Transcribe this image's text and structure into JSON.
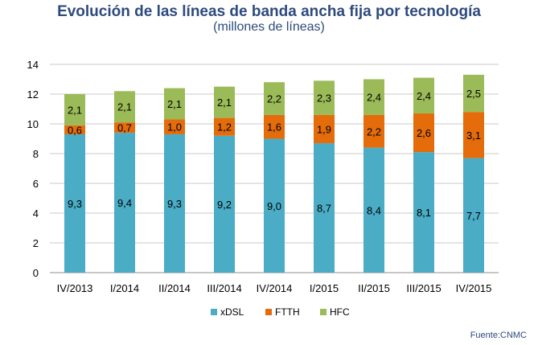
{
  "title": "Evolución de las líneas de banda ancha fija por tecnología",
  "subtitle": "(millones de líneas)",
  "source": "Fuente:CNMC",
  "chart_data": {
    "type": "bar",
    "stacked": true,
    "categories": [
      "IV/2013",
      "I/2014",
      "II/2014",
      "III/2014",
      "IV/2014",
      "I/2015",
      "II/2015",
      "III/2015",
      "IV/2015"
    ],
    "series": [
      {
        "name": "xDSL",
        "color": "#4bacc6",
        "values": [
          9.3,
          9.4,
          9.3,
          9.2,
          9.0,
          8.7,
          8.4,
          8.1,
          7.7
        ],
        "labels": [
          "9,3",
          "9,4",
          "9,3",
          "9,2",
          "9,0",
          "8,7",
          "8,4",
          "8,1",
          "7,7"
        ]
      },
      {
        "name": "FTTH",
        "color": "#e46c0a",
        "values": [
          0.6,
          0.7,
          1.0,
          1.2,
          1.6,
          1.9,
          2.2,
          2.6,
          3.1
        ],
        "labels": [
          "0,6",
          "0,7",
          "1,0",
          "1,2",
          "1,6",
          "1,9",
          "2,2",
          "2,6",
          "3,1"
        ]
      },
      {
        "name": "HFC",
        "color": "#9bbb59",
        "values": [
          2.1,
          2.1,
          2.1,
          2.1,
          2.2,
          2.3,
          2.4,
          2.4,
          2.5
        ],
        "labels": [
          "2,1",
          "2,1",
          "2,1",
          "2,1",
          "2,2",
          "2,3",
          "2,4",
          "2,4",
          "2,5"
        ]
      }
    ],
    "ylim": [
      0,
      14
    ],
    "yticks": [
      0,
      2,
      4,
      6,
      8,
      10,
      12,
      14
    ],
    "grid": true,
    "legend": "bottom"
  }
}
